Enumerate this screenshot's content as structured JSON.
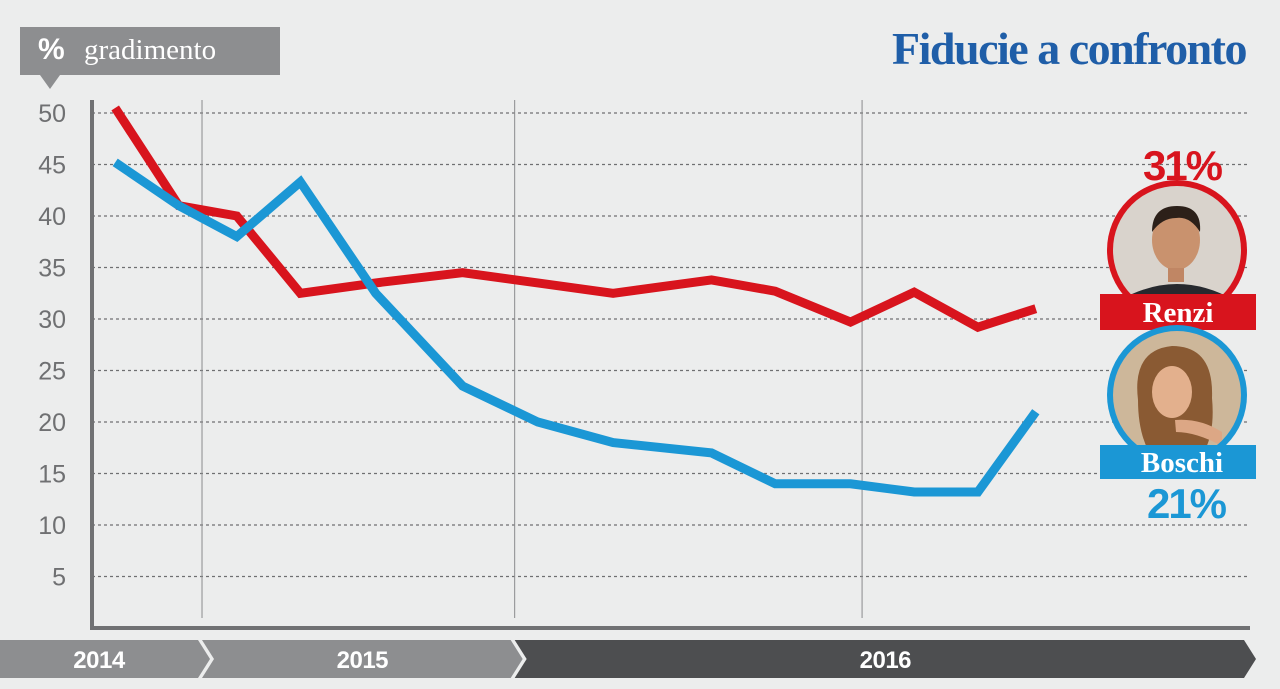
{
  "header": {
    "unit_symbol": "%",
    "unit_label": "gradimento",
    "title": "Fiducie a confronto"
  },
  "colors": {
    "renzi": "#d8141d",
    "boschi": "#1b97d5",
    "title": "#1f5ea8",
    "axis": "#707173",
    "year_light": "#8d8e90",
    "year_dark": "#4d4e50"
  },
  "chart_data": {
    "type": "line",
    "title": "Fiducie a confronto",
    "ylabel": "% gradimento",
    "xlabel": "",
    "ylim": [
      0,
      50
    ],
    "yticks": [
      5,
      10,
      15,
      20,
      25,
      30,
      35,
      40,
      45,
      50
    ],
    "grid": true,
    "x": [
      0,
      0.55,
      1.05,
      1.6,
      2.25,
      3.0,
      3.65,
      4.3,
      5.15,
      5.7,
      6.35,
      6.9,
      7.45,
      7.95,
      8.55,
      9.15
    ],
    "x_range": [
      -0.2,
      9.8
    ],
    "periods": [
      {
        "label": "2014",
        "start": -0.2,
        "end": 0.75,
        "shade": "light"
      },
      {
        "label": "2015",
        "start": 0.75,
        "end": 3.45,
        "shade": "light"
      },
      {
        "label": "2016",
        "start": 3.45,
        "end": 9.8,
        "shade": "dark"
      }
    ],
    "vlines": [
      0.75,
      3.45,
      6.45
    ],
    "series": [
      {
        "name": "Renzi",
        "values": [
          50.5,
          41.0,
          40.0,
          32.5,
          33.5,
          34.5,
          33.5,
          32.5,
          33.8,
          32.7,
          29.7,
          32.6,
          29.2,
          31.0,
          null,
          null
        ],
        "final_label": "31%"
      },
      {
        "name": "Boschi",
        "values": [
          45.2,
          41.0,
          38.0,
          43.3,
          32.5,
          23.5,
          20.0,
          18.0,
          17.0,
          14.0,
          14.0,
          13.2,
          13.2,
          21.0,
          null,
          null
        ],
        "final_label": "21%"
      }
    ]
  }
}
